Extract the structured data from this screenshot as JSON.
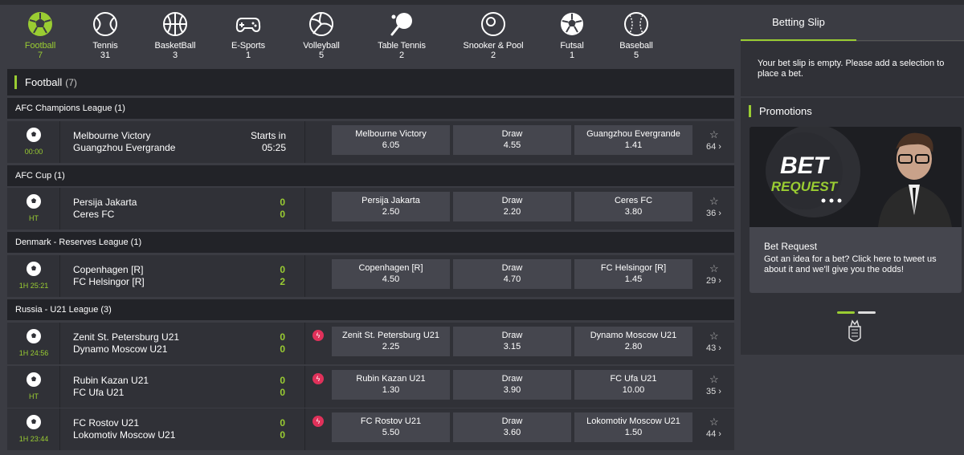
{
  "sports": [
    {
      "name": "Football",
      "count": "7",
      "icon": "football-icon",
      "active": true
    },
    {
      "name": "Tennis",
      "count": "31",
      "icon": "tennis-ball-icon"
    },
    {
      "name": "BasketBall",
      "count": "3",
      "icon": "basketball-icon"
    },
    {
      "name": "E-Sports",
      "count": "1",
      "icon": "gamepad-icon"
    },
    {
      "name": "Volleyball",
      "count": "5",
      "icon": "volleyball-icon"
    },
    {
      "name": "Table Tennis",
      "count": "2",
      "icon": "table-tennis-icon"
    },
    {
      "name": "Snooker & Pool",
      "count": "2",
      "icon": "snooker-ball-icon"
    },
    {
      "name": "Futsal",
      "count": "1",
      "icon": "futsal-icon"
    },
    {
      "name": "Baseball",
      "count": "5",
      "icon": "baseball-icon"
    }
  ],
  "section": {
    "title": "Football",
    "count": "(7)"
  },
  "leagues": {
    "l1": "AFC Champions League  (1)",
    "l2": "AFC Cup  (1)",
    "l3": "Denmark - Reserves League  (1)",
    "l4": "Russia - U21 League  (3)"
  },
  "matches": {
    "m1": {
      "time": "00:00",
      "home": "Melbourne Victory",
      "away": "Guangzhou Evergrande",
      "starts_label": "Starts in",
      "starts_time": "05:25",
      "o1_label": "Melbourne Victory",
      "o1_val": "6.05",
      "o2_label": "Draw",
      "o2_val": "4.55",
      "o3_label": "Guangzhou Evergrande",
      "o3_val": "1.41",
      "more": "64 ›"
    },
    "m2": {
      "time": "HT",
      "home": "Persija Jakarta",
      "away": "Ceres FC",
      "sh": "0",
      "sa": "0",
      "o1_label": "Persija Jakarta",
      "o1_val": "2.50",
      "o2_label": "Draw",
      "o2_val": "2.20",
      "o3_label": "Ceres FC",
      "o3_val": "3.80",
      "more": "36 ›"
    },
    "m3": {
      "time": "1H 25:21",
      "home": "Copenhagen [R]",
      "away": "FC Helsingor [R]",
      "sh": "0",
      "sa": "2",
      "o1_label": "Copenhagen [R]",
      "o1_val": "4.50",
      "o2_label": "Draw",
      "o2_val": "4.70",
      "o3_label": "FC Helsingor [R]",
      "o3_val": "1.45",
      "more": "29 ›"
    },
    "m4": {
      "time": "1H 24:56",
      "home": "Zenit St. Petersburg U21",
      "away": "Dynamo Moscow U21",
      "sh": "0",
      "sa": "0",
      "o1_label": "Zenit St. Petersburg U21",
      "o1_val": "2.25",
      "o2_label": "Draw",
      "o2_val": "3.15",
      "o3_label": "Dynamo Moscow U21",
      "o3_val": "2.80",
      "more": "43 ›"
    },
    "m5": {
      "time": "HT",
      "home": "Rubin Kazan U21",
      "away": "FC Ufa U21",
      "sh": "0",
      "sa": "0",
      "o1_label": "Rubin Kazan U21",
      "o1_val": "1.30",
      "o2_label": "Draw",
      "o2_val": "3.90",
      "o3_label": "FC Ufa U21",
      "o3_val": "10.00",
      "more": "35 ›"
    },
    "m6": {
      "time": "1H 23:44",
      "home": "FC Rostov U21",
      "away": "Lokomotiv Moscow U21",
      "sh": "0",
      "sa": "0",
      "o1_label": "FC Rostov U21",
      "o1_val": "5.50",
      "o2_label": "Draw",
      "o2_val": "3.60",
      "o3_label": "Lokomotiv Moscow U21",
      "o3_val": "1.50",
      "more": "44 ›"
    }
  },
  "slip": {
    "tab": "Betting Slip",
    "empty": "Your bet slip is empty. Please add a selection to place a bet."
  },
  "promotions": {
    "title": "Promotions",
    "card_title": "Bet Request",
    "card_desc": "Got an idea for a bet? Click here to tweet us about it and we'll give you the odds!",
    "banner_line1": "BET",
    "banner_line2": "REQUEST"
  },
  "colors": {
    "accent": "#9acd32",
    "live": "#e0315a",
    "panel": "#303137",
    "odd": "#45464e"
  }
}
